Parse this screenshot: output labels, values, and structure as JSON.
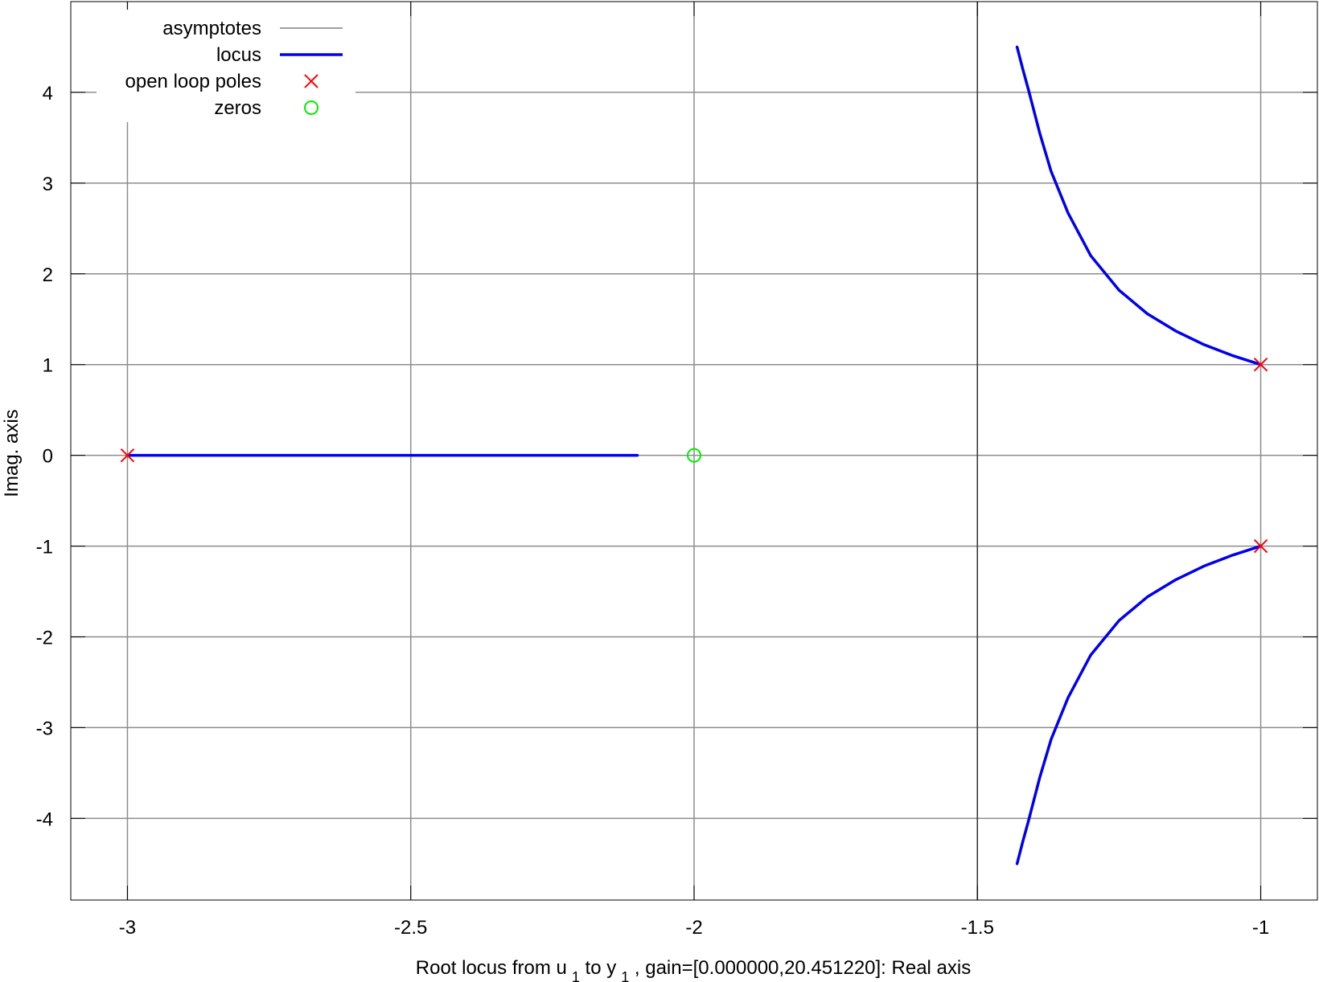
{
  "chart_data": {
    "type": "line",
    "xlabel": {
      "prefix": "Root locus from u",
      "sub1": "1",
      "mid": " to y",
      "sub2": "1",
      "suffix": " , gain=[0.000000,20.451220]: Real axis"
    },
    "ylabel": "Imag. axis",
    "xlim": [
      -3.1,
      -0.9
    ],
    "ylim": [
      -4.9,
      5.0
    ],
    "x_ticks": [
      -3,
      -2.5,
      -2,
      -1.5,
      -1
    ],
    "x_tick_labels": [
      "-3",
      "-2.5",
      "-2",
      "-1.5",
      "-1"
    ],
    "y_ticks": [
      -4,
      -3,
      -2,
      -1,
      0,
      1,
      2,
      3,
      4
    ],
    "y_tick_labels": [
      "-4",
      "-3",
      "-2",
      "-1",
      "0",
      "1",
      "2",
      "3",
      "4"
    ],
    "grid": true,
    "legend_position": "top-left",
    "legend": [
      {
        "label": "asymptotes",
        "kind": "line",
        "color": "#808080"
      },
      {
        "label": "locus",
        "kind": "line",
        "color": "#0000ee"
      },
      {
        "label": "open loop poles",
        "kind": "cross",
        "color": "#ff0000"
      },
      {
        "label": "zeros",
        "kind": "circle",
        "color": "#00ee00"
      }
    ],
    "asymptotes": {
      "center": -1.5,
      "color": "#808080"
    },
    "series": [
      {
        "name": "locus",
        "color": "#0000ee",
        "branches": [
          [
            [
              -3.0,
              0
            ],
            [
              -2.8,
              0
            ],
            [
              -2.6,
              0
            ],
            [
              -2.4,
              0
            ],
            [
              -2.2,
              0
            ],
            [
              -2.1,
              0
            ]
          ],
          [
            [
              -1.0,
              1.0
            ],
            [
              -1.05,
              1.1
            ],
            [
              -1.1,
              1.22
            ],
            [
              -1.15,
              1.37
            ],
            [
              -1.2,
              1.56
            ],
            [
              -1.25,
              1.82
            ],
            [
              -1.3,
              2.2
            ],
            [
              -1.34,
              2.67
            ],
            [
              -1.37,
              3.13
            ],
            [
              -1.39,
              3.55
            ],
            [
              -1.41,
              4.03
            ],
            [
              -1.42,
              4.26
            ],
            [
              -1.43,
              4.5
            ]
          ],
          [
            [
              -1.0,
              -1.0
            ],
            [
              -1.05,
              -1.1
            ],
            [
              -1.1,
              -1.22
            ],
            [
              -1.15,
              -1.37
            ],
            [
              -1.2,
              -1.56
            ],
            [
              -1.25,
              -1.82
            ],
            [
              -1.3,
              -2.2
            ],
            [
              -1.34,
              -2.67
            ],
            [
              -1.37,
              -3.13
            ],
            [
              -1.39,
              -3.55
            ],
            [
              -1.41,
              -4.03
            ],
            [
              -1.42,
              -4.26
            ],
            [
              -1.43,
              -4.5
            ]
          ]
        ]
      },
      {
        "name": "open loop poles",
        "color": "#ff0000",
        "points": [
          [
            -3,
            0
          ],
          [
            -1,
            1
          ],
          [
            -1,
            -1
          ]
        ]
      },
      {
        "name": "zeros",
        "color": "#00ee00",
        "points": [
          [
            -2,
            0
          ]
        ]
      }
    ]
  }
}
